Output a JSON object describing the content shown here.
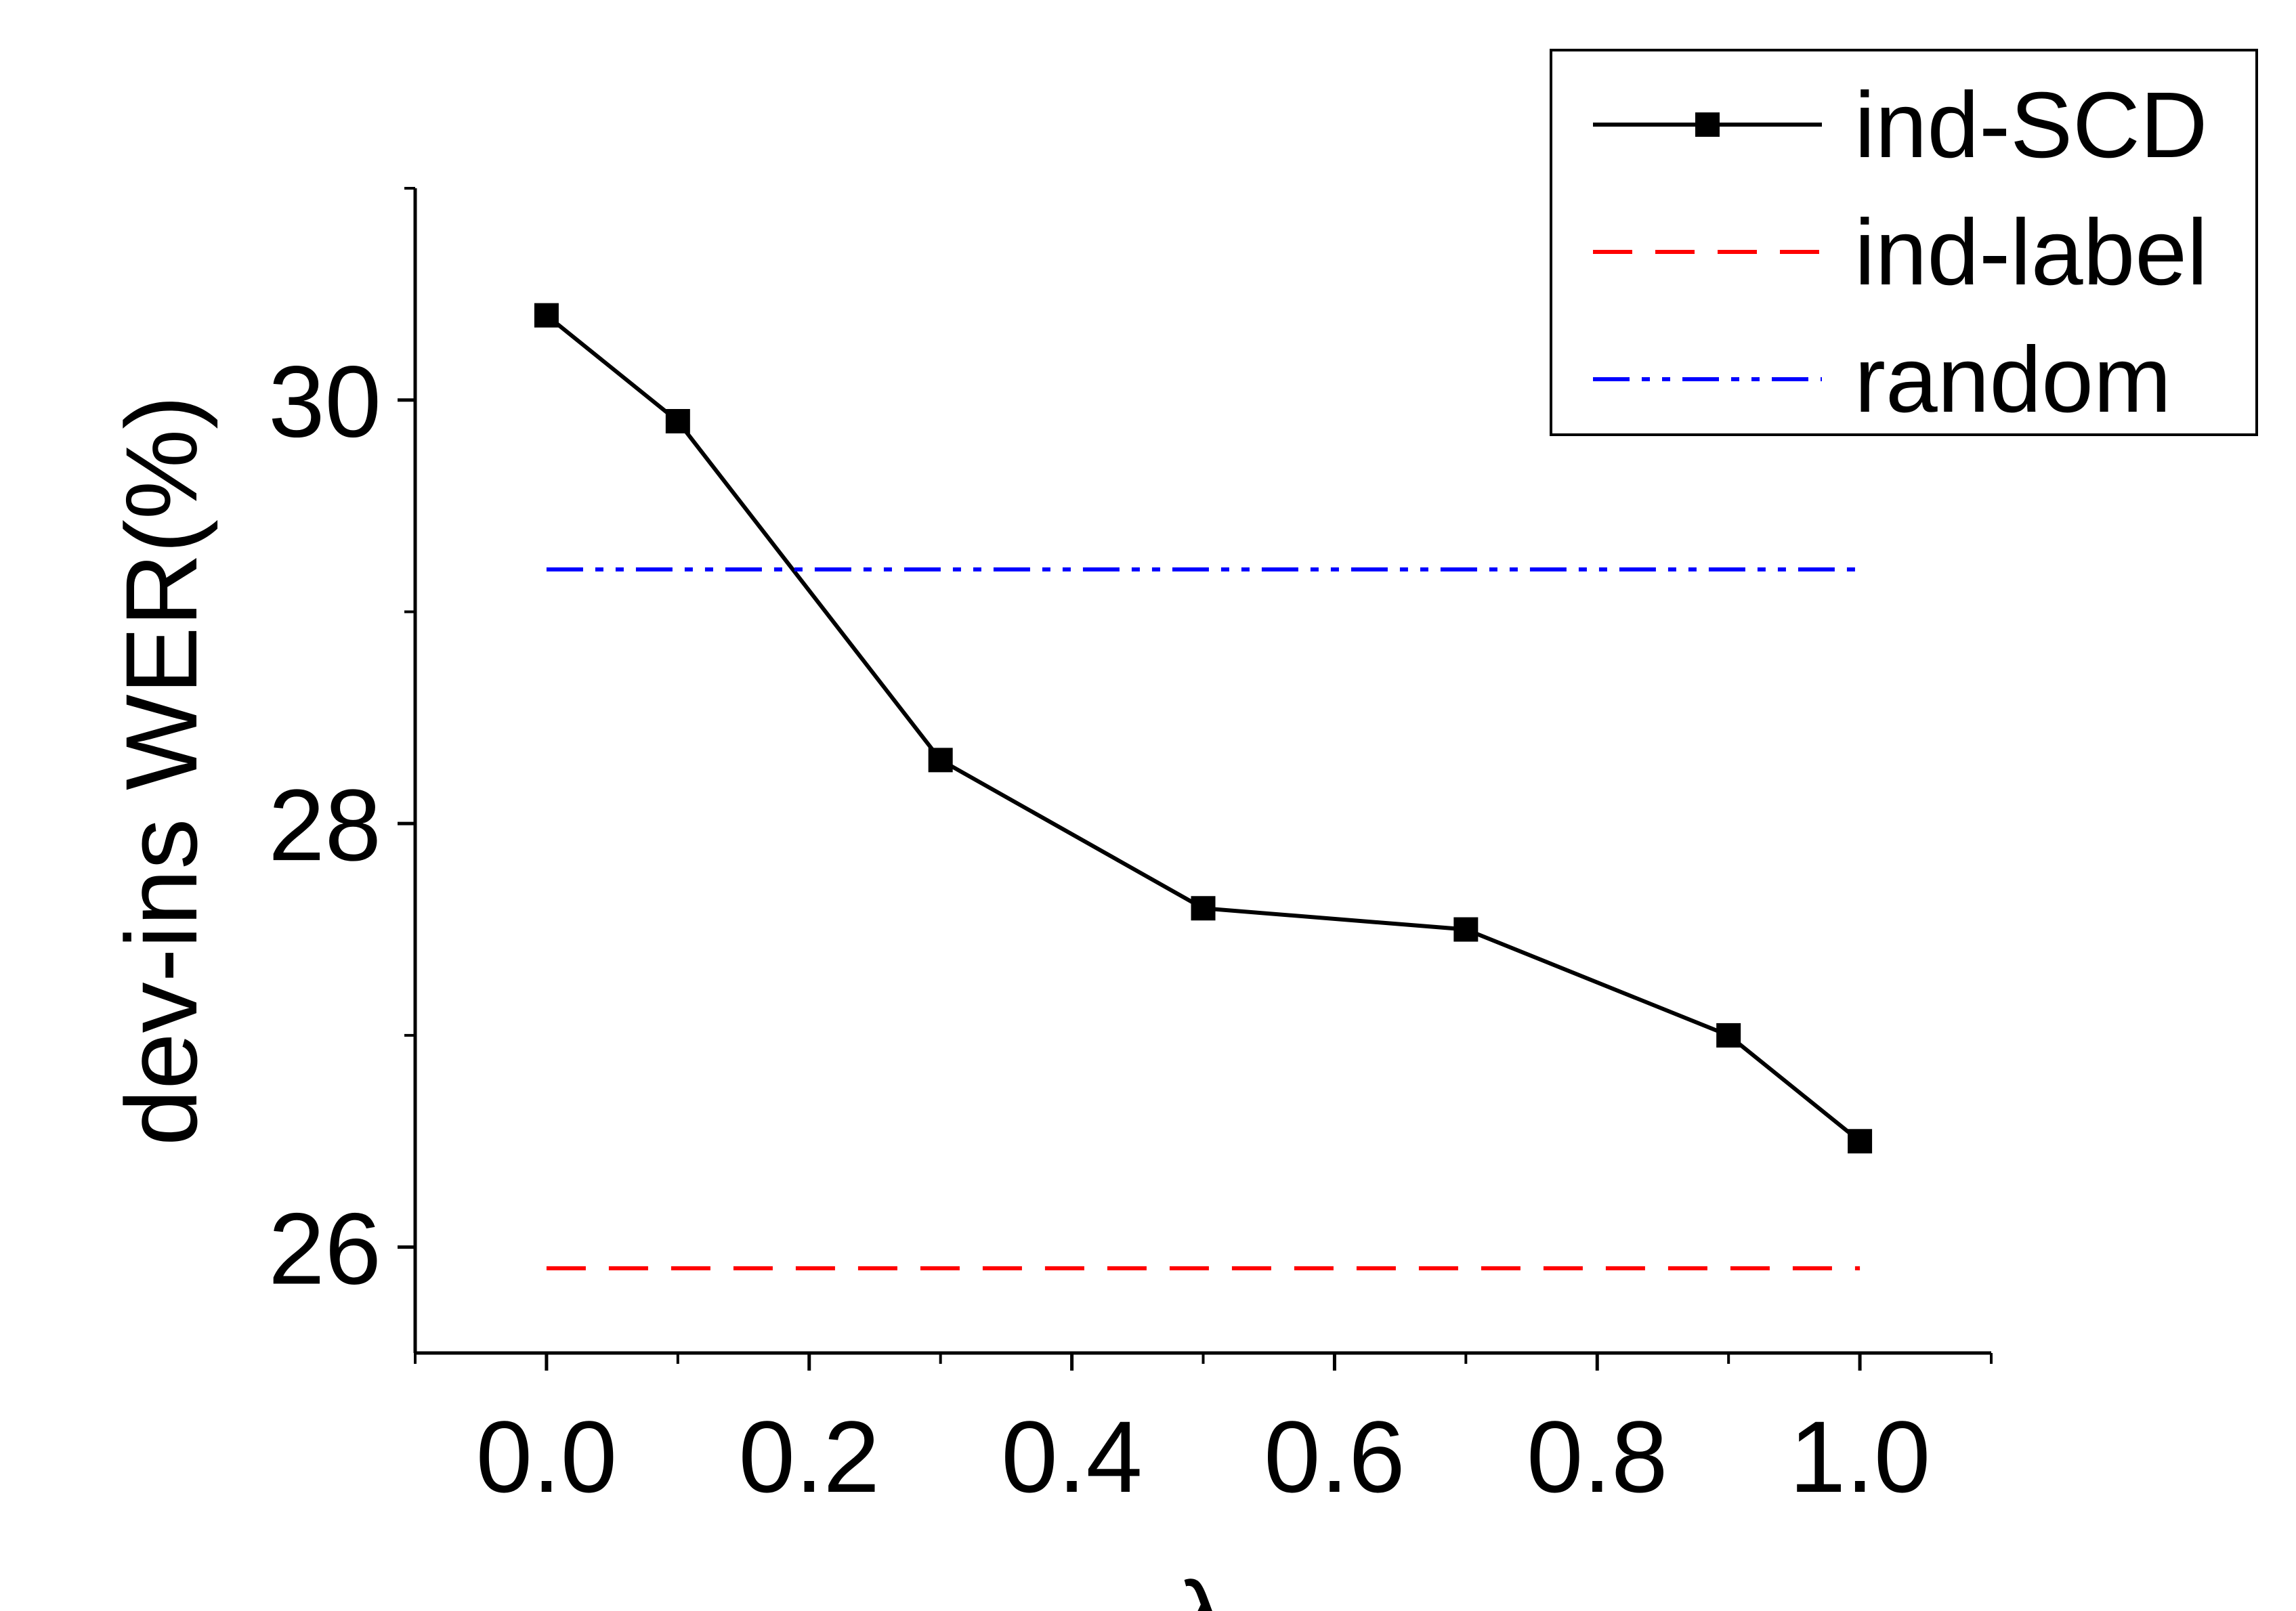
{
  "chart_data": {
    "type": "line",
    "title": "",
    "xlabel": "λ",
    "ylabel": "dev-ins WER(%)",
    "xlim": [
      -0.1,
      1.1
    ],
    "ylim": [
      25.5,
      31.0
    ],
    "x_ticks": [
      0.0,
      0.2,
      0.4,
      0.6,
      0.8,
      1.0
    ],
    "x_tick_labels": [
      "0.0",
      "0.2",
      "0.4",
      "0.6",
      "0.8",
      "1.0"
    ],
    "y_ticks": [
      26,
      28,
      30
    ],
    "y_tick_labels": [
      "26",
      "28",
      "30"
    ],
    "grid": false,
    "legend_position": "top-right",
    "series": [
      {
        "name": "ind-SCD",
        "style": "solid-square-markers",
        "color": "#000000",
        "x": [
          0.0,
          0.1,
          0.3,
          0.5,
          0.7,
          0.9,
          1.0
        ],
        "values": [
          30.4,
          29.9,
          28.3,
          27.6,
          27.5,
          27.0,
          26.5
        ]
      },
      {
        "name": "ind-label",
        "style": "dashed",
        "color": "#ff0000",
        "x": [
          0.0,
          1.0
        ],
        "values": [
          25.9,
          25.9
        ]
      },
      {
        "name": "random",
        "style": "dash-dot-dot",
        "color": "#0000ff",
        "x": [
          0.0,
          1.0
        ],
        "values": [
          29.2,
          29.2
        ]
      }
    ]
  }
}
